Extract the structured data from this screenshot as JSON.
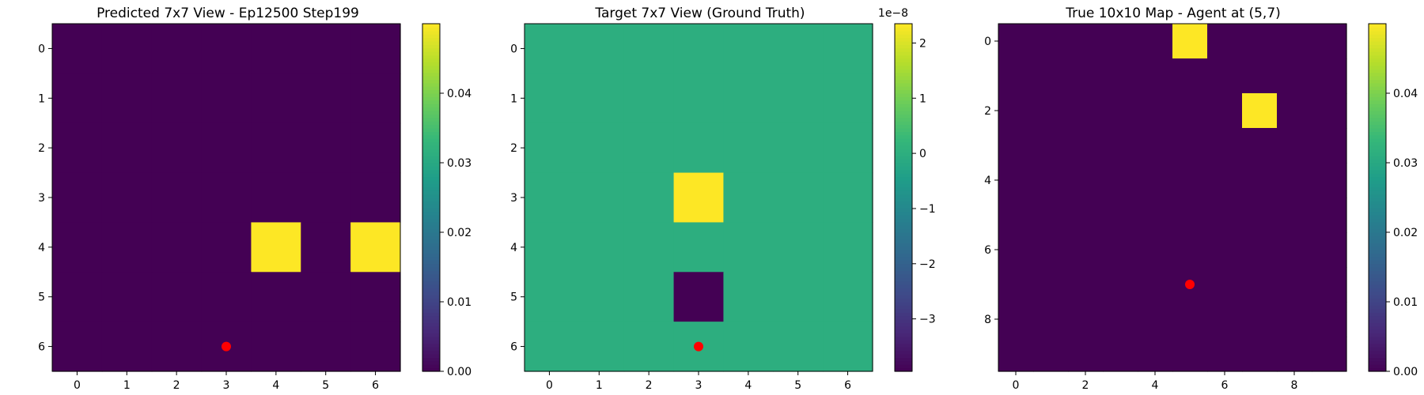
{
  "chart_data": [
    {
      "type": "heatmap",
      "title": "Predicted 7x7 View - Ep12500 Step199",
      "xlabel": "",
      "ylabel": "",
      "grid": false,
      "rows": 7,
      "cols": 7,
      "values": [
        [
          0,
          0,
          0,
          0,
          0,
          0,
          0
        ],
        [
          0,
          0,
          0,
          0,
          0,
          0,
          0
        ],
        [
          0,
          0,
          0,
          0,
          0,
          0,
          0
        ],
        [
          0,
          0,
          0,
          0,
          0,
          0,
          0
        ],
        [
          0,
          0,
          0,
          0,
          0.05,
          0,
          0.05
        ],
        [
          0,
          0,
          0,
          0,
          0,
          0,
          0
        ],
        [
          0,
          0,
          0,
          0,
          0,
          0,
          0
        ]
      ],
      "vmin": 0,
      "vmax": 0.05,
      "xticks": [
        0,
        1,
        2,
        3,
        4,
        5,
        6
      ],
      "yticks": [
        0,
        1,
        2,
        3,
        4,
        5,
        6
      ],
      "agent": {
        "x": 3,
        "y": 6
      },
      "agent_color": "#ff0000",
      "colorbar": {
        "ticks": [
          0.0,
          0.01,
          0.02,
          0.03,
          0.04
        ],
        "tick_labels": [
          "0.00",
          "0.01",
          "0.02",
          "0.03",
          "0.04"
        ],
        "offset_label": ""
      }
    },
    {
      "type": "heatmap",
      "title": "Target 7x7 View (Ground Truth)",
      "xlabel": "",
      "ylabel": "",
      "grid": false,
      "rows": 7,
      "cols": 7,
      "values": [
        [
          0,
          0,
          0,
          0,
          0,
          0,
          0
        ],
        [
          0,
          0,
          0,
          0,
          0,
          0,
          0
        ],
        [
          0,
          0,
          0,
          0,
          0,
          0,
          0
        ],
        [
          0,
          0,
          0,
          2.35e-08,
          0,
          0,
          0
        ],
        [
          0,
          0,
          0,
          0,
          0,
          0,
          0
        ],
        [
          0,
          0,
          0,
          -3.95e-08,
          0,
          0,
          0
        ],
        [
          0,
          0,
          0,
          0,
          0,
          0,
          0
        ]
      ],
      "vmin": -3.95e-08,
      "vmax": 2.35e-08,
      "xticks": [
        0,
        1,
        2,
        3,
        4,
        5,
        6
      ],
      "yticks": [
        0,
        1,
        2,
        3,
        4,
        5,
        6
      ],
      "agent": {
        "x": 3,
        "y": 6
      },
      "agent_color": "#ff0000",
      "colorbar": {
        "ticks": [
          -3e-08,
          -2e-08,
          -1e-08,
          0,
          1e-08,
          2e-08
        ],
        "tick_labels": [
          "−3",
          "−2",
          "−1",
          "0",
          "1",
          "2"
        ],
        "offset_label": "1e−8"
      }
    },
    {
      "type": "heatmap",
      "title": "True 10x10 Map - Agent at (5,7)",
      "xlabel": "",
      "ylabel": "",
      "grid": false,
      "rows": 10,
      "cols": 10,
      "values": [
        [
          0,
          0,
          0,
          0,
          0,
          0.05,
          0,
          0,
          0,
          0
        ],
        [
          0,
          0,
          0,
          0,
          0,
          0,
          0,
          0,
          0,
          0
        ],
        [
          0,
          0,
          0,
          0,
          0,
          0,
          0,
          0.05,
          0,
          0
        ],
        [
          0,
          0,
          0,
          0,
          0,
          0,
          0,
          0,
          0,
          0
        ],
        [
          0,
          0,
          0,
          0,
          0,
          0,
          0,
          0,
          0,
          0
        ],
        [
          0,
          0,
          0,
          0,
          0,
          0,
          0,
          0,
          0,
          0
        ],
        [
          0,
          0,
          0,
          0,
          0,
          0,
          0,
          0,
          0,
          0
        ],
        [
          0,
          0,
          0,
          0,
          0,
          0,
          0,
          0,
          0,
          0
        ],
        [
          0,
          0,
          0,
          0,
          0,
          0,
          0,
          0,
          0,
          0
        ],
        [
          0,
          0,
          0,
          0,
          0,
          0,
          0,
          0,
          0,
          0
        ]
      ],
      "vmin": 0,
      "vmax": 0.05,
      "xticks": [
        0,
        2,
        4,
        6,
        8
      ],
      "yticks": [
        0,
        2,
        4,
        6,
        8
      ],
      "agent": {
        "x": 5,
        "y": 7
      },
      "agent_color": "#ff0000",
      "colorbar": {
        "ticks": [
          0.0,
          0.01,
          0.02,
          0.03,
          0.04
        ],
        "tick_labels": [
          "0.00",
          "0.01",
          "0.02",
          "0.03",
          "0.04"
        ],
        "offset_label": ""
      }
    }
  ],
  "colormap": {
    "name": "viridis",
    "stops": [
      "#440154",
      "#482878",
      "#3e4a89",
      "#31688e",
      "#26828e",
      "#1f9e89",
      "#35b779",
      "#6ece58",
      "#b5de2b",
      "#fde725"
    ]
  }
}
